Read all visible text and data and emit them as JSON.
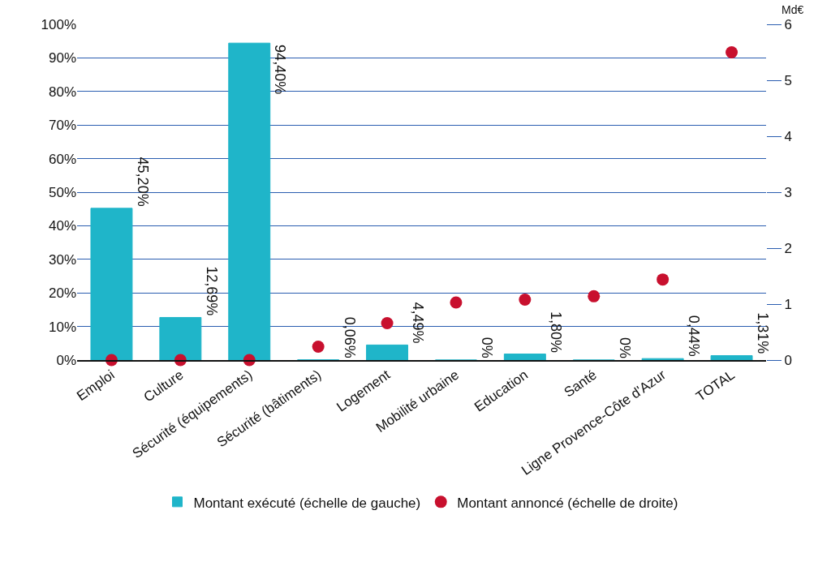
{
  "chart_data": {
    "type": "bar",
    "categories": [
      "Emploi",
      "Culture",
      "Sécurité (équipements)",
      "Sécurité (bâtiments)",
      "Logement",
      "Mobilité urbaine",
      "Education",
      "Santé",
      "Ligne Provence-Côte d'Azur",
      "TOTAL"
    ],
    "series": [
      {
        "name": "Montant exécuté (échelle de gauche)",
        "color": "#1fb5c9",
        "values": [
          45.2,
          12.69,
          94.4,
          0.06,
          4.49,
          0,
          1.8,
          0,
          0.44,
          1.31
        ],
        "value_labels": [
          "45,20%",
          "12,69%",
          "94,40%",
          "0,06%",
          "4,49%",
          "0%",
          "1,80%",
          "0%",
          "0,44%",
          "1,31%"
        ]
      },
      {
        "name": "Montant annoncé (échelle de droite)",
        "type": "scatter",
        "axis": "y2",
        "color": "#c8102e",
        "marker": "circle",
        "values": [
          0,
          0,
          0,
          0.24,
          0.66,
          1.03,
          1.08,
          1.14,
          1.44,
          5.5
        ]
      }
    ],
    "ylim": [
      0,
      100
    ],
    "yticks": [
      {
        "value": 0,
        "label": "0%"
      },
      {
        "value": 10,
        "label": "10%"
      },
      {
        "value": 20,
        "label": "20%"
      },
      {
        "value": 30,
        "label": "30%"
      },
      {
        "value": 40,
        "label": "40%"
      },
      {
        "value": 50,
        "label": "50%"
      },
      {
        "value": 60,
        "label": "60%"
      },
      {
        "value": 70,
        "label": "70%"
      },
      {
        "value": 80,
        "label": "80%"
      },
      {
        "value": 90,
        "label": "90%"
      },
      {
        "value": 100,
        "label": "100%"
      }
    ],
    "y2label": "Md€",
    "y2lim": [
      0,
      6
    ],
    "y2ticks": [
      0,
      1,
      2,
      3,
      4,
      5,
      6
    ],
    "grid": "y",
    "legend": "bottom"
  }
}
